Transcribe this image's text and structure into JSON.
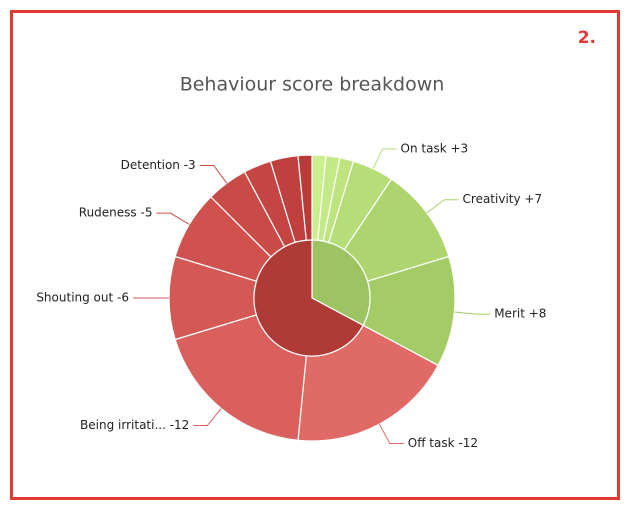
{
  "badge": "2.",
  "chart_data": {
    "type": "sunburst",
    "title": "Behaviour score breakdown",
    "groups": [
      {
        "color": "#9cc463"
      },
      {
        "color": "#b03a36"
      }
    ],
    "segments": [
      {
        "label": null,
        "value": 1,
        "group": 0,
        "color": "#c9f08c"
      },
      {
        "label": null,
        "value": 1,
        "group": 0,
        "color": "#c3ea86"
      },
      {
        "label": null,
        "value": 1,
        "group": 0,
        "color": "#bde47f"
      },
      {
        "label": "On task +3",
        "value": 3,
        "group": 0,
        "color": "#b6de78"
      },
      {
        "label": "Creativity +7",
        "value": 7,
        "group": 0,
        "color": "#add46f"
      },
      {
        "label": "Merit +8",
        "value": 8,
        "group": 0,
        "color": "#a3cb66"
      },
      {
        "label": "Off task -12",
        "value": -12,
        "group": 1,
        "color": "#e06a66"
      },
      {
        "label": "Being irritati... -12",
        "value": -12,
        "group": 1,
        "color": "#d9605c"
      },
      {
        "label": "Shouting out -6",
        "value": -6,
        "group": 1,
        "color": "#d45955"
      },
      {
        "label": "Rudeness -5",
        "value": -5,
        "group": 1,
        "color": "#cf524e"
      },
      {
        "label": "Detention -3",
        "value": -3,
        "group": 1,
        "color": "#c94b48"
      },
      {
        "label": null,
        "value": -2,
        "group": 1,
        "color": "#c44542"
      },
      {
        "label": null,
        "value": -2,
        "group": 1,
        "color": "#bf403d"
      },
      {
        "label": null,
        "value": -1,
        "group": 1,
        "color": "#b93b38"
      }
    ]
  }
}
